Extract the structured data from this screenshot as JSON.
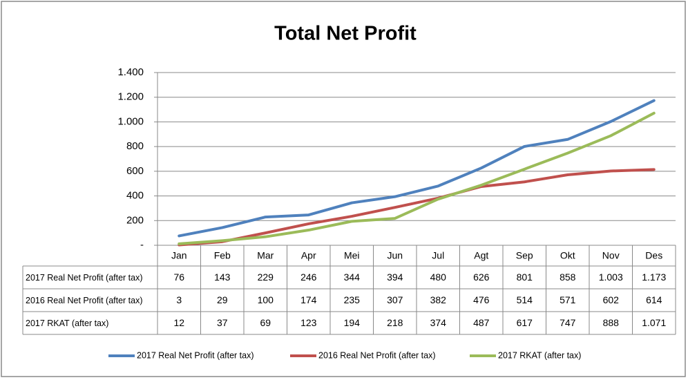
{
  "chart_data": {
    "type": "line",
    "title": "Total Net Profit",
    "categories": [
      "Jan",
      "Feb",
      "Mar",
      "Apr",
      "Mei",
      "Jun",
      "Jul",
      "Agt",
      "Sep",
      "Okt",
      "Nov",
      "Des"
    ],
    "series": [
      {
        "name": "2017 Real Net Profit (after tax)",
        "color": "#4f81bd",
        "values": [
          76,
          143,
          229,
          246,
          344,
          394,
          480,
          626,
          801,
          858,
          1003,
          1173
        ],
        "value_labels": [
          "76",
          "143",
          "229",
          "246",
          "344",
          "394",
          "480",
          "626",
          "801",
          "858",
          "1.003",
          "1.173"
        ]
      },
      {
        "name": "2016 Real Net Profit (after tax)",
        "color": "#c0504d",
        "values": [
          3,
          29,
          100,
          174,
          235,
          307,
          382,
          476,
          514,
          571,
          602,
          614
        ],
        "value_labels": [
          "3",
          "29",
          "100",
          "174",
          "235",
          "307",
          "382",
          "476",
          "514",
          "571",
          "602",
          "614"
        ]
      },
      {
        "name": "2017 RKAT (after tax)",
        "color": "#9bbb59",
        "values": [
          12,
          37,
          69,
          123,
          194,
          218,
          374,
          487,
          617,
          747,
          888,
          1071
        ],
        "value_labels": [
          "12",
          "37",
          "69",
          "123",
          "194",
          "218",
          "374",
          "487",
          "617",
          "747",
          "888",
          "1.071"
        ]
      }
    ],
    "ylim": [
      0,
      1400
    ],
    "yticks": [
      {
        "value": 0,
        "label": "-"
      },
      200,
      400,
      600,
      800,
      {
        "value": 1000,
        "label": "1.000"
      },
      {
        "value": 1200,
        "label": "1.200"
      },
      {
        "value": 1400,
        "label": "1.400"
      }
    ],
    "grid": true,
    "legend": "bottom"
  }
}
